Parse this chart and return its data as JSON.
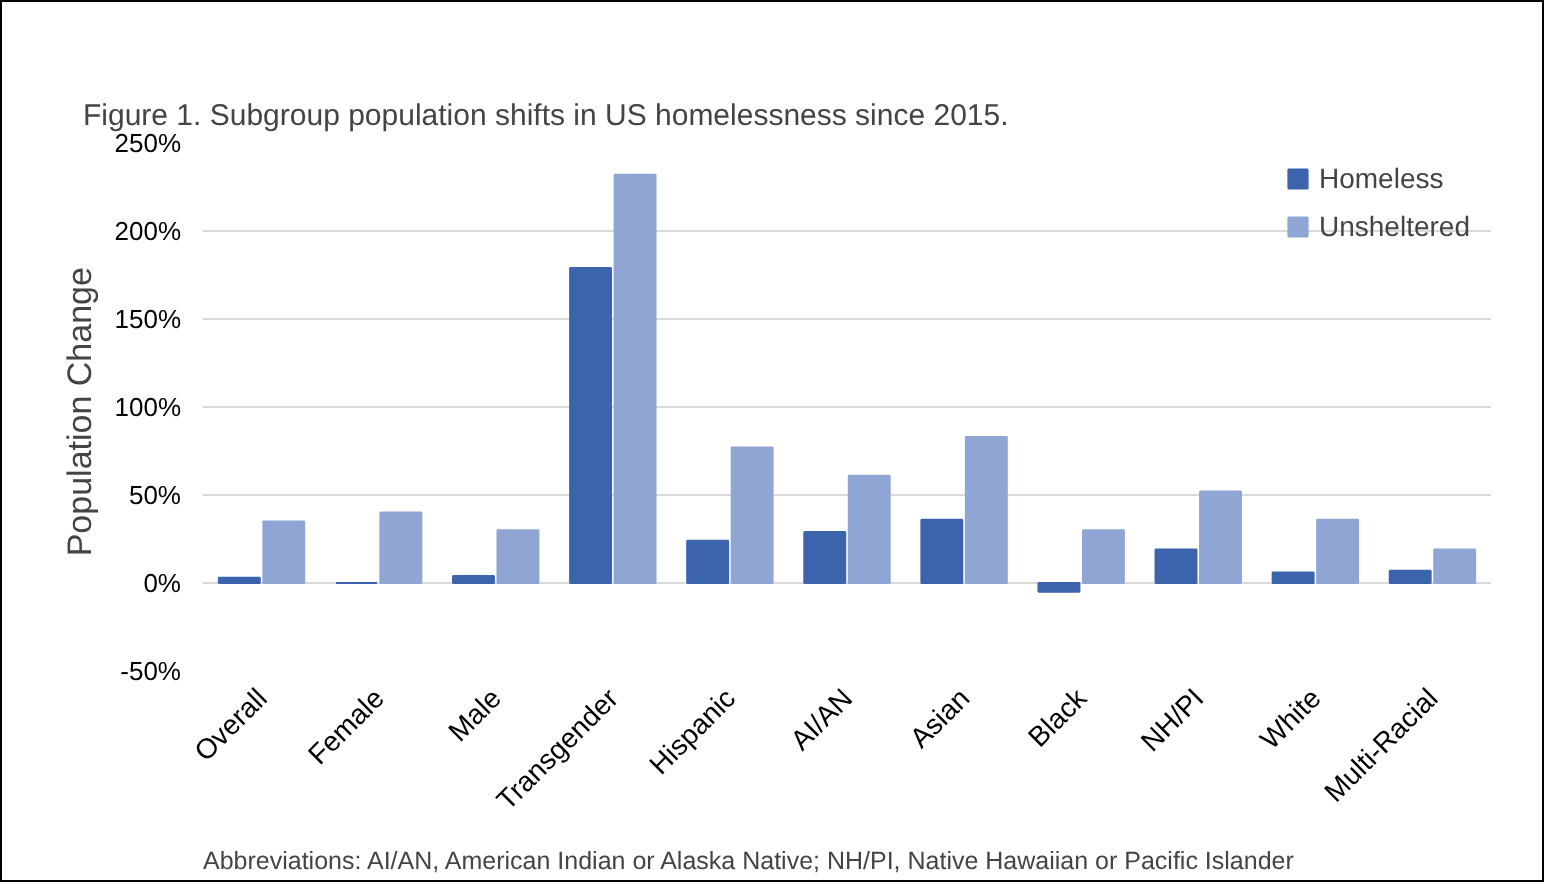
{
  "chart_data": {
    "type": "bar",
    "title": "Figure 1. Subgroup population shifts in US homelessness since 2015.",
    "ylabel": "Population  Change",
    "categories": [
      "Overall",
      "Female",
      "Male",
      "Transgender",
      "Hispanic",
      "AI/AN",
      "Asian",
      "Black",
      "NH/PI",
      "White",
      "Multi-Racial"
    ],
    "series": [
      {
        "name": "Homeless",
        "color": "#3c64ac",
        "values": [
          3,
          0,
          4,
          179,
          24,
          29,
          36,
          -5,
          19,
          6,
          7
        ]
      },
      {
        "name": "Unsheltered",
        "color": "#8fa5d4",
        "values": [
          35,
          40,
          30,
          232,
          77,
          61,
          83,
          30,
          52,
          36,
          19
        ]
      }
    ],
    "ylim": [
      -50,
      250
    ],
    "yticks": [
      {
        "value": -50,
        "label": "-50%"
      },
      {
        "value": 0,
        "label": "0%"
      },
      {
        "value": 50,
        "label": "50%"
      },
      {
        "value": 100,
        "label": "100%"
      },
      {
        "value": 150,
        "label": "150%"
      },
      {
        "value": 200,
        "label": "200%"
      },
      {
        "value": 250,
        "label": "250%"
      }
    ],
    "grid": "y",
    "legend": "top right",
    "annotations": [
      "Abbreviations: AI/AN, American Indian or Alaska Native; NH/PI, Native Hawaiian or Pacific Islander"
    ]
  }
}
